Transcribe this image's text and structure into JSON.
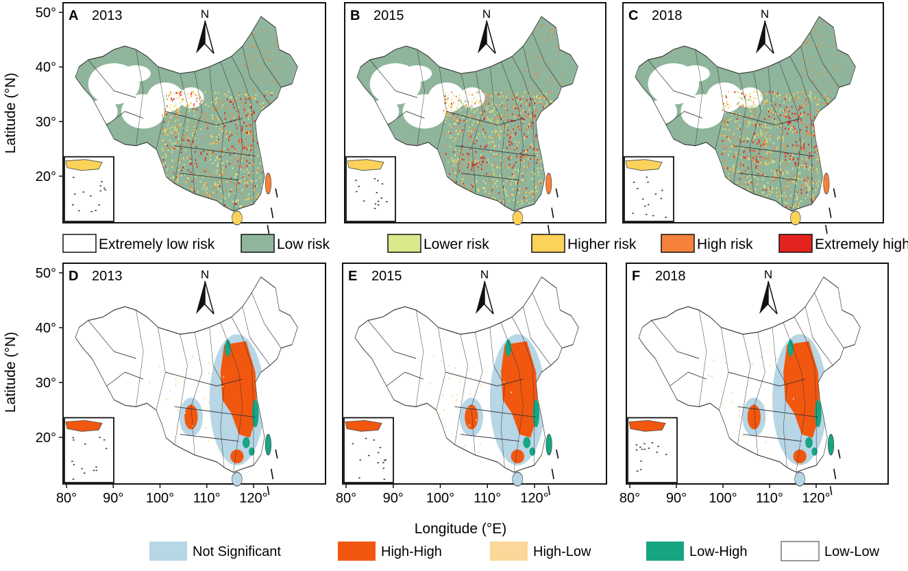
{
  "axes": {
    "ylabel": "Latitude (°N)",
    "xlabel": "Longitude (°E)",
    "lat_ticks": [
      "50°",
      "40°",
      "30°",
      "20°"
    ],
    "lon_ticks": [
      "80°",
      "90°",
      "100°",
      "110°",
      "120°"
    ]
  },
  "north_label": "N",
  "panels": [
    {
      "letter": "A",
      "year": "2013",
      "kind": "risk"
    },
    {
      "letter": "B",
      "year": "2015",
      "kind": "risk"
    },
    {
      "letter": "C",
      "year": "2018",
      "kind": "risk"
    },
    {
      "letter": "D",
      "year": "2013",
      "kind": "lisa"
    },
    {
      "letter": "E",
      "year": "2015",
      "kind": "lisa"
    },
    {
      "letter": "F",
      "year": "2018",
      "kind": "lisa"
    }
  ],
  "risk_legend": [
    {
      "label": "Extremely low risk",
      "color": "#ffffff"
    },
    {
      "label": "Low risk",
      "color": "#8fb59c"
    },
    {
      "label": "Lower risk",
      "color": "#d9e88a"
    },
    {
      "label": "Higher risk",
      "color": "#fcd35a"
    },
    {
      "label": "High risk",
      "color": "#f5813a"
    },
    {
      "label": "Extremely high risk",
      "color": "#e3231e"
    }
  ],
  "lisa_legend": [
    {
      "label": "Not Significant",
      "color": "#b7d6e6"
    },
    {
      "label": "High-High",
      "color": "#f2570f"
    },
    {
      "label": "High-Low",
      "color": "#fdd79a"
    },
    {
      "label": "Low-High",
      "color": "#17a583"
    },
    {
      "label": "Low-Low",
      "color": "#ffffff"
    }
  ]
}
